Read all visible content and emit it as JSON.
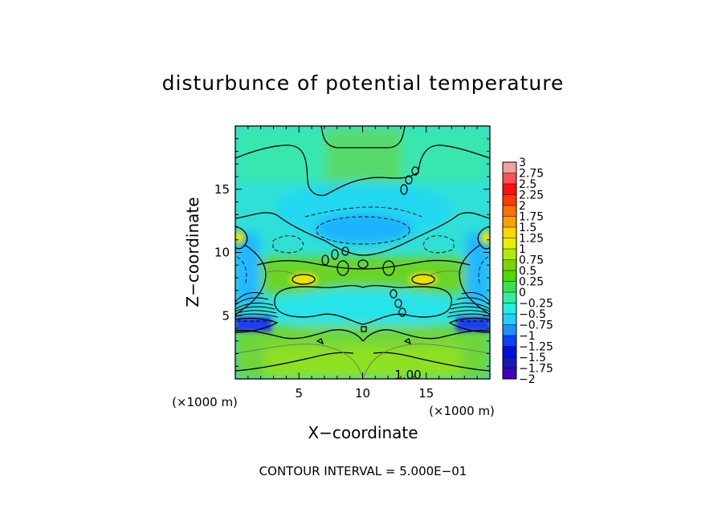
{
  "chart_data": {
    "type": "heatmap",
    "title": "disturbunce of potential temperature",
    "xlabel": "X−coordinate",
    "ylabel": "Z−coordinate",
    "x_unit": "(×1000 m)",
    "y_unit": "(×1000 m)",
    "xlim": [
      0,
      20
    ],
    "ylim": [
      0,
      20
    ],
    "x_ticks": [
      5,
      10,
      15
    ],
    "y_ticks": [
      5,
      10,
      15
    ],
    "x_tick_labels": [
      "5",
      "10",
      "15"
    ],
    "y_tick_labels": [
      "5",
      "10",
      "15"
    ],
    "contour_label": "1.00",
    "note": "CONTOUR INTERVAL = 5.000E−01",
    "colorbar": {
      "levels": [
        "3",
        "2.75",
        "2.5",
        "2.25",
        "2",
        "1.75",
        "1.5",
        "1.25",
        "1",
        "0.75",
        "0.5",
        "0.25",
        "0",
        "−0.25",
        "−0.5",
        "−0.75",
        "−1",
        "−1.25",
        "−1.5",
        "−1.75",
        "−2"
      ],
      "colors": [
        "#f3a0a0",
        "#ff5050",
        "#ff1010",
        "#ff3a00",
        "#ff7000",
        "#ffa000",
        "#ffd800",
        "#e8f000",
        "#a8ee00",
        "#7ad400",
        "#50d800",
        "#38e050",
        "#30f0a0",
        "#20f0e0",
        "#20d0ff",
        "#2090ff",
        "#0a40ff",
        "#0010e0",
        "#1818b0",
        "#4000c0"
      ]
    },
    "features": [
      {
        "kind": "warm-band",
        "x": [
          0,
          20
        ],
        "z": [
          0,
          4.5
        ],
        "value": 0.75
      },
      {
        "kind": "cold-core",
        "x": [
          1,
          3
        ],
        "z": [
          3.6,
          4.2
        ],
        "value": -1.25
      },
      {
        "kind": "cold-core",
        "x": [
          17,
          19
        ],
        "z": [
          3.6,
          4.2
        ],
        "value": -1.25
      },
      {
        "kind": "cold-region",
        "x": [
          3,
          17
        ],
        "z": [
          4.5,
          7.5
        ],
        "value": -0.25
      },
      {
        "kind": "warm-band",
        "x": [
          3,
          17
        ],
        "z": [
          7.5,
          11
        ],
        "value": 0.75
      },
      {
        "kind": "warm-blob",
        "x": [
          4.6,
          5.8
        ],
        "z": [
          7.9,
          8.8
        ],
        "value": 1.5
      },
      {
        "kind": "warm-blob",
        "x": [
          14.2,
          15.4
        ],
        "z": [
          7.9,
          8.8
        ],
        "value": 1.5
      },
      {
        "kind": "cold-lens",
        "x": [
          7,
          13
        ],
        "z": [
          11,
          13
        ],
        "value": -0.75
      },
      {
        "kind": "cold-region",
        "x": [
          0,
          3
        ],
        "z": [
          6,
          11
        ],
        "value": -0.5
      },
      {
        "kind": "cold-region",
        "x": [
          17,
          20
        ],
        "z": [
          6,
          11
        ],
        "value": -0.5
      },
      {
        "kind": "upper-band",
        "x": [
          0,
          20
        ],
        "z": [
          13,
          20
        ],
        "value": 0.25
      }
    ]
  }
}
